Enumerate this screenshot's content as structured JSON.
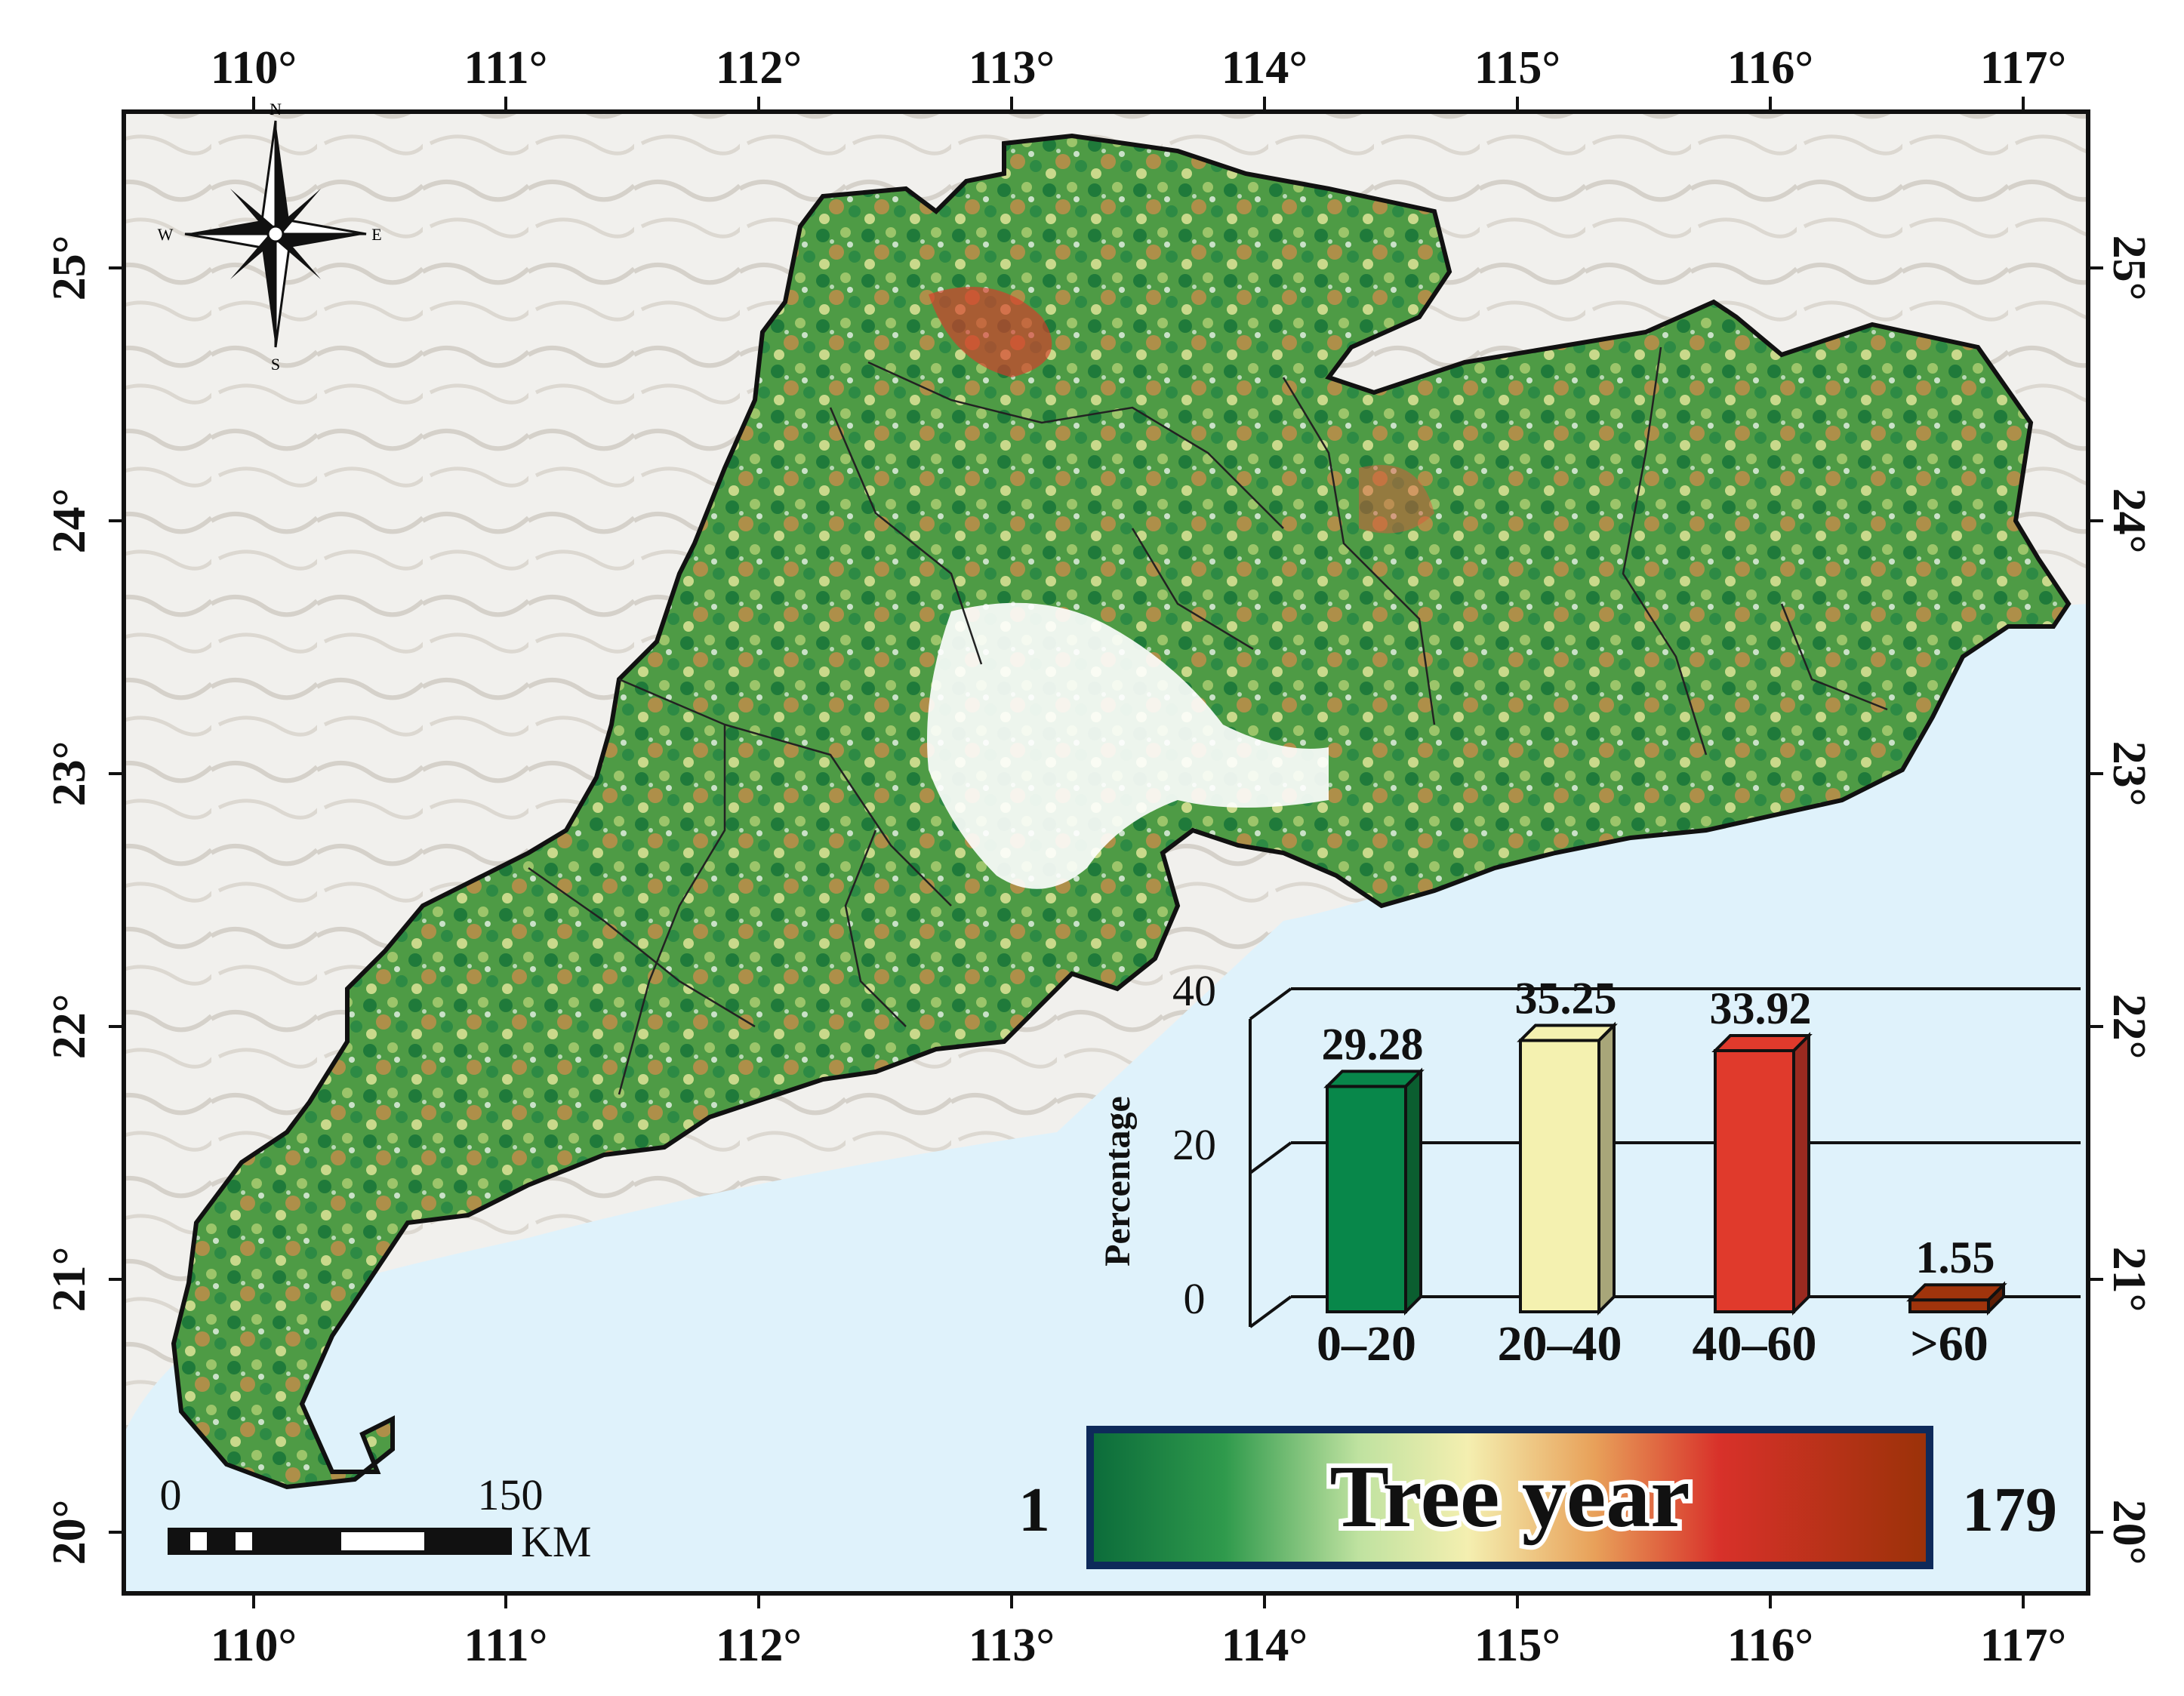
{
  "map": {
    "lon_labels": [
      "110°",
      "111°",
      "112°",
      "113°",
      "114°",
      "115°",
      "116°",
      "117°"
    ],
    "lat_labels": [
      "25°",
      "24°",
      "23°",
      "22°",
      "21°",
      "20°"
    ],
    "compass": {
      "n": "N",
      "s": "S",
      "e": "E",
      "w": "W"
    },
    "scale_bar": {
      "start": "0",
      "end": "150",
      "unit": "KM"
    },
    "legend": {
      "title": "Tree year",
      "min": "1",
      "max": "179",
      "colors": [
        "#0b6b3a",
        "#2f9a4c",
        "#bfe2a0",
        "#f4efb0",
        "#e8a15a",
        "#d8312a",
        "#9a3208"
      ]
    },
    "colors": {
      "sea": "#dff2fb",
      "land_outside": "#efefec",
      "forest": "#3f8f3c",
      "frame": "#111111"
    }
  },
  "chart_data": {
    "type": "bar",
    "ylabel": "Percentage",
    "categories": [
      "0–20",
      "20–40",
      "40–60",
      ">60"
    ],
    "values": [
      29.28,
      35.25,
      33.92,
      1.55
    ],
    "value_labels": [
      "29.28",
      "35.25",
      "33.92",
      "1.55"
    ],
    "y_ticks": [
      "0",
      "20",
      "40"
    ],
    "ylim": [
      0,
      40
    ],
    "bar_colors": [
      "#08874a",
      "#f4f1b0",
      "#e03a2c",
      "#a0340c"
    ],
    "grid": true
  }
}
